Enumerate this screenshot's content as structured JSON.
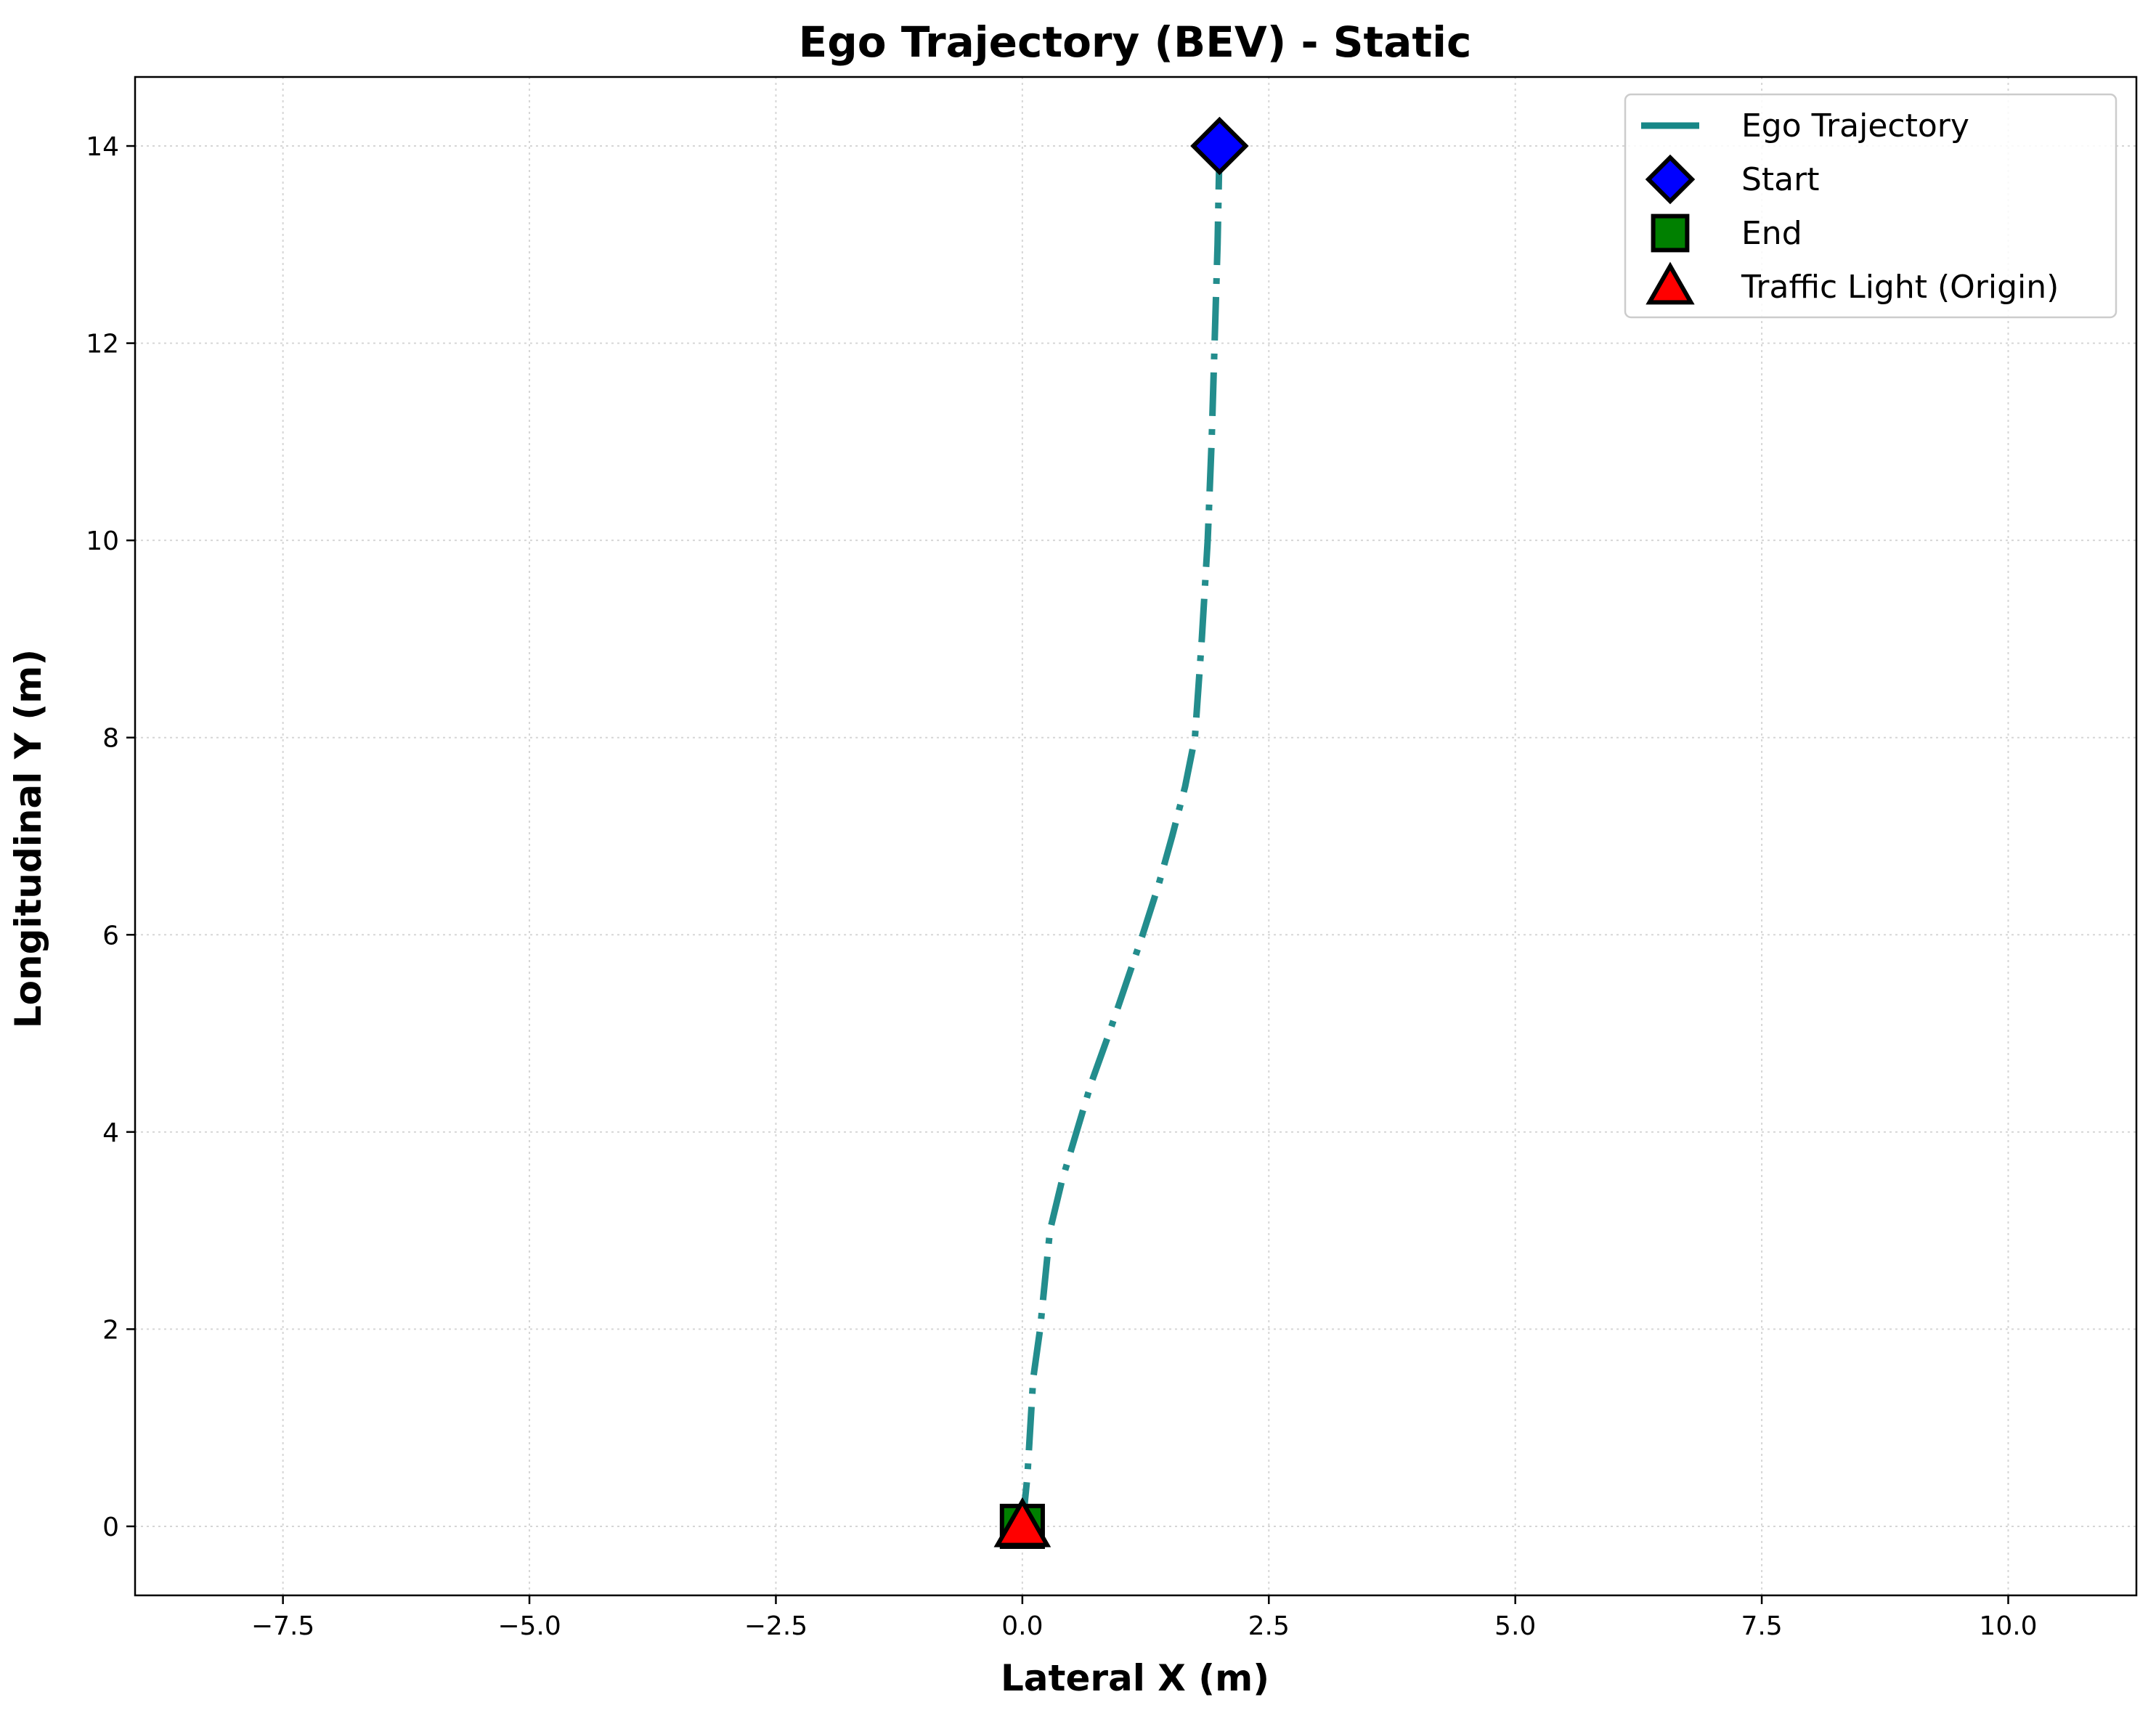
{
  "chart_data": {
    "type": "line",
    "title": "Ego Trajectory (BEV) - Static",
    "xlabel": "Lateral X (m)",
    "ylabel": "Longitudinal Y (m)",
    "xlim": [
      -9.0,
      11.3
    ],
    "ylim": [
      -0.7,
      14.7
    ],
    "xticks": [
      -7.5,
      -5.0,
      -2.5,
      0.0,
      2.5,
      5.0,
      7.5,
      10.0
    ],
    "xtick_labels": [
      "−7.5",
      "−5.0",
      "−2.5",
      "0.0",
      "2.5",
      "5.0",
      "7.5",
      "10.0"
    ],
    "yticks": [
      0,
      2,
      4,
      6,
      8,
      10,
      12,
      14
    ],
    "ytick_labels": [
      "0",
      "2",
      "4",
      "6",
      "8",
      "10",
      "12",
      "14"
    ],
    "grid": true,
    "legend_position": "top-right",
    "series": [
      {
        "name": "Ego Trajectory",
        "color": "#178787",
        "style": "dashdot",
        "x": [
          2.0,
          1.98,
          1.95,
          1.92,
          1.88,
          1.82,
          1.75,
          1.65,
          1.52,
          1.38,
          1.22,
          1.05,
          0.88,
          0.7,
          0.55,
          0.4,
          0.28,
          0.18,
          0.11,
          0.05,
          0.0
        ],
        "y": [
          14.0,
          13.0,
          12.0,
          11.0,
          10.0,
          9.0,
          8.0,
          7.5,
          7.0,
          6.5,
          6.0,
          5.5,
          5.0,
          4.5,
          4.0,
          3.5,
          3.0,
          2.0,
          1.5,
          0.5,
          0.0
        ]
      }
    ],
    "markers": [
      {
        "name": "Start",
        "shape": "diamond",
        "color": "#0000ff",
        "x": 2.0,
        "y": 14.0
      },
      {
        "name": "End",
        "shape": "square",
        "color": "#008000",
        "x": 0.0,
        "y": 0.0
      },
      {
        "name": "Traffic Light (Origin)",
        "shape": "triangle",
        "color": "#ff0000",
        "x": 0.0,
        "y": 0.0
      }
    ]
  }
}
